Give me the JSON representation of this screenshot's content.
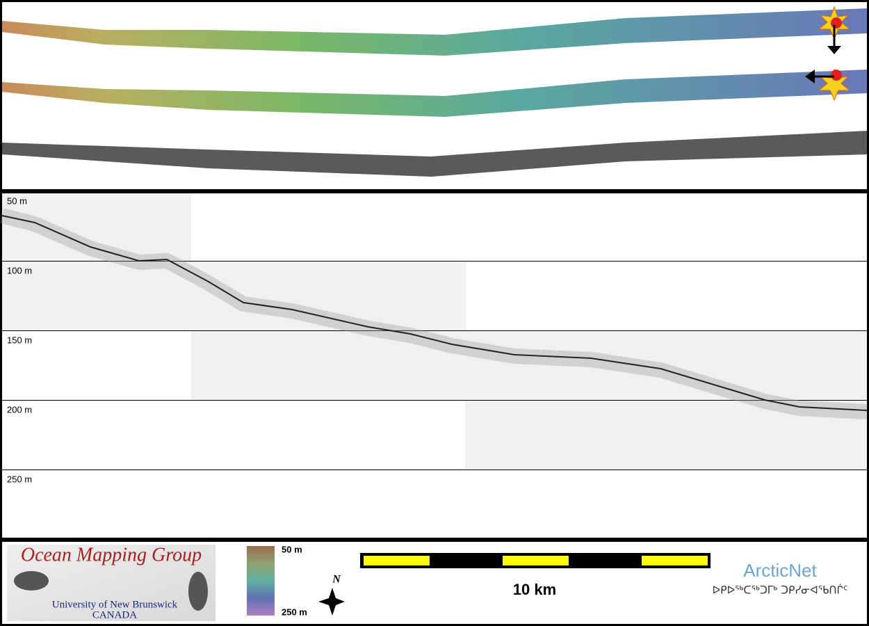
{
  "profile": {
    "depth_labels": [
      "50 m",
      "100 m",
      "150 m",
      "200 m",
      "250 m"
    ]
  },
  "footer": {
    "logo": {
      "title": "Ocean Mapping Group",
      "university": "University of New Brunswick",
      "country": "CANADA"
    },
    "colorbar": {
      "top_label": "50 m",
      "bottom_label": "250 m"
    },
    "compass": "N",
    "scale_bar": "10 km",
    "partner": {
      "name": "ArcticNet",
      "syllabics": "ᐅᑭᐅᖅᑕᖅᑐᒥᒃ ᑐᑭᓯᓂᐊᖃᑎᒌᑦ"
    }
  }
}
